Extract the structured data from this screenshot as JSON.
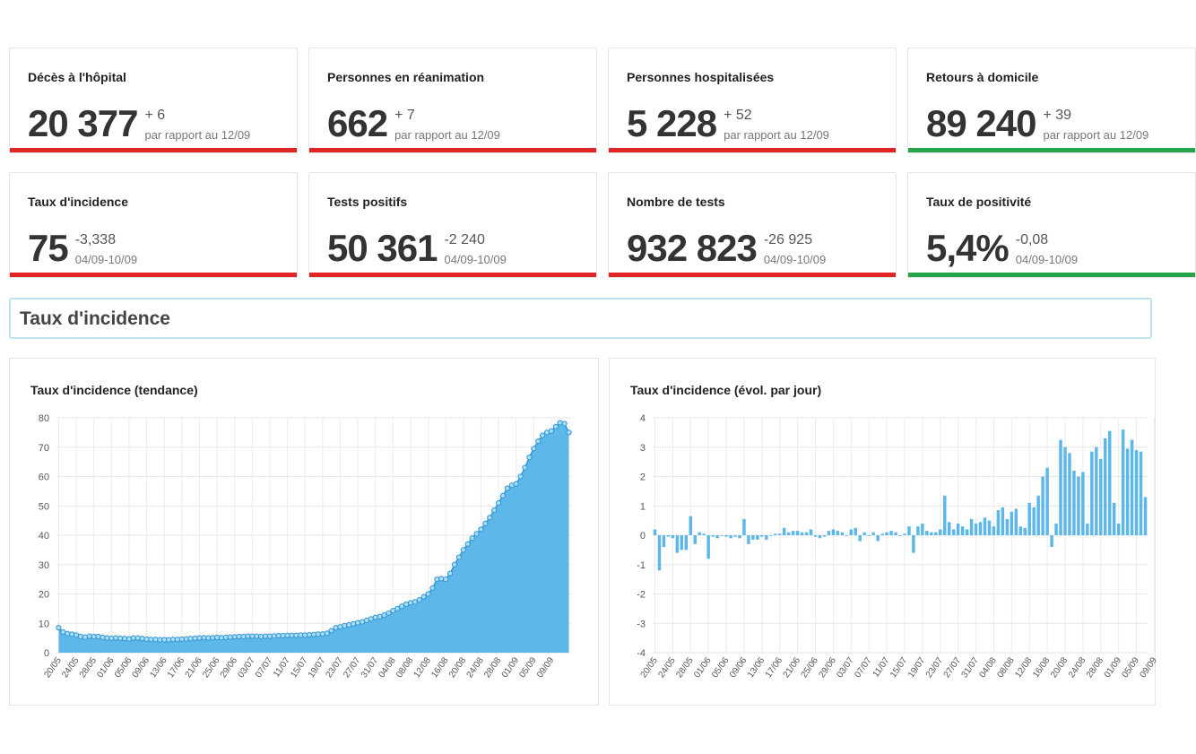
{
  "colors": {
    "red": "#e02424",
    "green": "#26a44a",
    "chart_blue": "#5db7e8",
    "chart_stroke": "#2f95d6"
  },
  "stat_cards": [
    {
      "title": "Décès à l'hôpital",
      "value": "20 377",
      "delta": "+ 6",
      "sub": "par rapport au 12/09",
      "status": "red"
    },
    {
      "title": "Personnes en réanimation",
      "value": "662",
      "delta": "+ 7",
      "sub": "par rapport au 12/09",
      "status": "red"
    },
    {
      "title": "Personnes hospitalisées",
      "value": "5 228",
      "delta": "+ 52",
      "sub": "par rapport au 12/09",
      "status": "red"
    },
    {
      "title": "Retours à domicile",
      "value": "89 240",
      "delta": "+ 39",
      "sub": "par rapport au 12/09",
      "status": "green"
    },
    {
      "title": "Taux d'incidence",
      "value": "75",
      "delta": "-3,338",
      "sub": "04/09-10/09",
      "status": "red"
    },
    {
      "title": "Tests positifs",
      "value": "50 361",
      "delta": "-2 240",
      "sub": "04/09-10/09",
      "status": "red"
    },
    {
      "title": "Nombre de tests",
      "value": "932 823",
      "delta": "-26 925",
      "sub": "04/09-10/09",
      "status": "red"
    },
    {
      "title": "Taux de positivité",
      "value": "5,4%",
      "delta": "-0,08",
      "sub": "04/09-10/09",
      "status": "green"
    }
  ],
  "section": {
    "title": "Taux d'incidence"
  },
  "chart_data": [
    {
      "type": "area",
      "title": "Taux d'incidence (tendance)",
      "ylim": [
        0,
        80
      ],
      "yticks": [
        0,
        10,
        20,
        30,
        40,
        50,
        60,
        70,
        80
      ],
      "xlabels": [
        "20/05",
        "24/05",
        "28/05",
        "01/06",
        "05/06",
        "09/06",
        "13/06",
        "17/06",
        "21/06",
        "25/06",
        "29/06",
        "03/07",
        "07/07",
        "11/07",
        "15/07",
        "19/07",
        "23/07",
        "27/07",
        "31/07",
        "04/08",
        "08/08",
        "12/08",
        "16/08",
        "20/08",
        "24/08",
        "28/08",
        "01/09",
        "05/09",
        "09/09"
      ],
      "values": [
        8.5,
        7.0,
        6.5,
        6.3,
        6.0,
        5.5,
        5.3,
        5.6,
        5.5,
        5.5,
        5.2,
        5.0,
        4.9,
        5.0,
        4.9,
        4.8,
        4.7,
        5.0,
        5.0,
        4.8,
        4.6,
        4.5,
        4.5,
        4.4,
        4.4,
        4.4,
        4.5,
        4.5,
        4.6,
        4.7,
        4.8,
        4.9,
        5.0,
        5.1,
        5.0,
        5.1,
        5.2,
        5.1,
        5.2,
        5.3,
        5.4,
        5.5,
        5.5,
        5.6,
        5.6,
        5.6,
        5.5,
        5.6,
        5.6,
        5.7,
        5.8,
        5.8,
        5.9,
        5.9,
        5.9,
        6.0,
        6.0,
        6.1,
        6.2,
        6.3,
        6.4,
        6.6,
        7.5,
        8.5,
        8.8,
        9.2,
        9.5,
        9.8,
        10.2,
        10.5,
        11.0,
        11.5,
        12.0,
        12.3,
        12.8,
        13.5,
        14.3,
        15.0,
        15.8,
        16.5,
        17.0,
        17.3,
        18.0,
        19.0,
        20.0,
        22.0,
        25.0,
        25.2,
        25.0,
        27.0,
        30.0,
        32.5,
        35.0,
        37.0,
        39.0,
        40.5,
        42.0,
        44.0,
        46.0,
        48.5,
        51.0,
        53.5,
        56.0,
        57.0,
        57.5,
        60.0,
        63.0,
        66.5,
        69.5,
        72.0,
        74.0,
        75.0,
        75.5,
        77.0,
        78.3,
        78.0,
        75.0
      ]
    },
    {
      "type": "bar",
      "title": "Taux d'incidence (évol. par jour)",
      "ylim": [
        -4,
        4
      ],
      "yticks": [
        -4,
        -3,
        -2,
        -1,
        0,
        1,
        2,
        3,
        4
      ],
      "xlabels": [
        "20/05",
        "24/05",
        "28/05",
        "01/06",
        "05/06",
        "09/06",
        "13/06",
        "17/06",
        "21/06",
        "25/06",
        "29/06",
        "03/07",
        "07/07",
        "11/07",
        "15/07",
        "19/07",
        "23/07",
        "27/07",
        "31/07",
        "04/08",
        "08/08",
        "12/08",
        "16/08",
        "20/08",
        "24/08",
        "28/08",
        "01/09",
        "05/09",
        "09/09"
      ],
      "values": [
        0.2,
        -1.2,
        -0.4,
        -0.05,
        -0.1,
        -0.6,
        -0.5,
        -0.5,
        0.65,
        -0.3,
        0.1,
        0.05,
        -0.8,
        -0.05,
        -0.1,
        0.0,
        -0.05,
        -0.1,
        -0.05,
        -0.1,
        0.55,
        -0.3,
        -0.15,
        -0.15,
        -0.05,
        -0.15,
        0.0,
        0.05,
        0.05,
        0.25,
        0.1,
        0.15,
        0.15,
        0.1,
        0.1,
        0.2,
        -0.05,
        -0.1,
        -0.05,
        0.15,
        0.2,
        0.15,
        0.1,
        0.0,
        0.2,
        0.25,
        -0.2,
        0.1,
        0.0,
        0.1,
        -0.2,
        0.05,
        0.1,
        0.15,
        0.1,
        0.0,
        0.05,
        0.3,
        -0.6,
        0.3,
        0.4,
        0.15,
        0.1,
        0.1,
        0.2,
        1.35,
        0.45,
        0.2,
        0.4,
        0.3,
        0.2,
        0.55,
        0.4,
        0.45,
        0.6,
        0.5,
        0.3,
        0.85,
        0.95,
        0.55,
        0.8,
        0.9,
        0.3,
        0.25,
        1.1,
        0.95,
        1.35,
        2.0,
        2.3,
        -0.4,
        0.4,
        3.25,
        3.0,
        2.8,
        2.2,
        2.0,
        2.15,
        0.4,
        2.85,
        3.0,
        2.6,
        3.3,
        3.55,
        1.1,
        0.4,
        3.6,
        2.95,
        3.25,
        2.9,
        2.85,
        1.3
      ]
    }
  ]
}
